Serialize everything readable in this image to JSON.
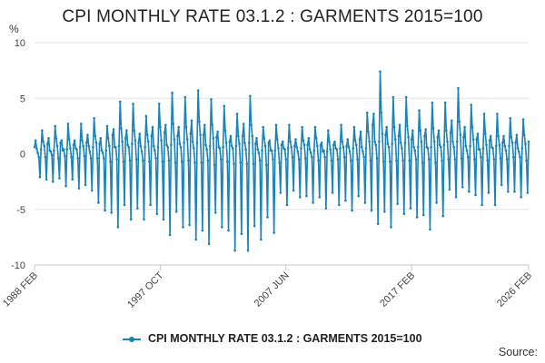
{
  "chart_data": {
    "type": "line",
    "title": "CPI MONTHLY RATE 03.1.2 : GARMENTS 2015=100",
    "ylabel": "%",
    "xlabel": "",
    "ylim": [
      -10,
      10
    ],
    "yticks": [
      10,
      5,
      0,
      -5,
      -10
    ],
    "x_start": "1988 FEB",
    "x_end": "2026 FEB",
    "xtick_labels": [
      "1988 FEB",
      "1997 OCT",
      "2007 JUN",
      "2017 FEB",
      "2026 FEB"
    ],
    "grid": true,
    "legend_position": "bottom",
    "series": [
      {
        "name": "CPI MONTHLY RATE 03.1.2 : GARMENTS 2015=100",
        "color": "#1a83b8",
        "annual_profile": [
          -4.5,
          1.0,
          1.5,
          0.5,
          0.3,
          -0.5,
          -5.5,
          0.5,
          3.0,
          1.5,
          0.8,
          -0.6
        ],
        "troughs_by_year": [
          -2.2,
          -2.6,
          -2.8,
          -3.0,
          -3.4,
          -5.2,
          -6.5,
          -5.8,
          -6.0,
          -5.5,
          -7.2,
          -6.5,
          -7.8,
          -8.2,
          -6.5,
          -8.6,
          -8.8,
          -7.8,
          -7.0,
          -4.5,
          -4.0,
          -4.5,
          -4.8,
          -4.5,
          -5.2,
          -4.5,
          -6.2,
          -6.5,
          -5.5,
          -5.8,
          -6.7,
          -5.5,
          -4.0,
          -3.5,
          -4.5,
          -4.5,
          -3.5,
          -4.0,
          -4.2
        ],
        "peaks_by_year": [
          2.2,
          2.5,
          2.6,
          2.7,
          3.3,
          2.5,
          4.6,
          4.5,
          3.5,
          4.6,
          5.4,
          5.0,
          5.8,
          5.0,
          4.2,
          3.5,
          5.3,
          2.5,
          2.5,
          2.5,
          2.5,
          2.5,
          2.0,
          2.5,
          2.5,
          3.8,
          7.3,
          5.0,
          5.2,
          4.0,
          4.5,
          4.5,
          6.0,
          4.5,
          3.5,
          3.5,
          3.3,
          3.2,
          2.8
        ]
      }
    ]
  },
  "source_label": "Source:"
}
